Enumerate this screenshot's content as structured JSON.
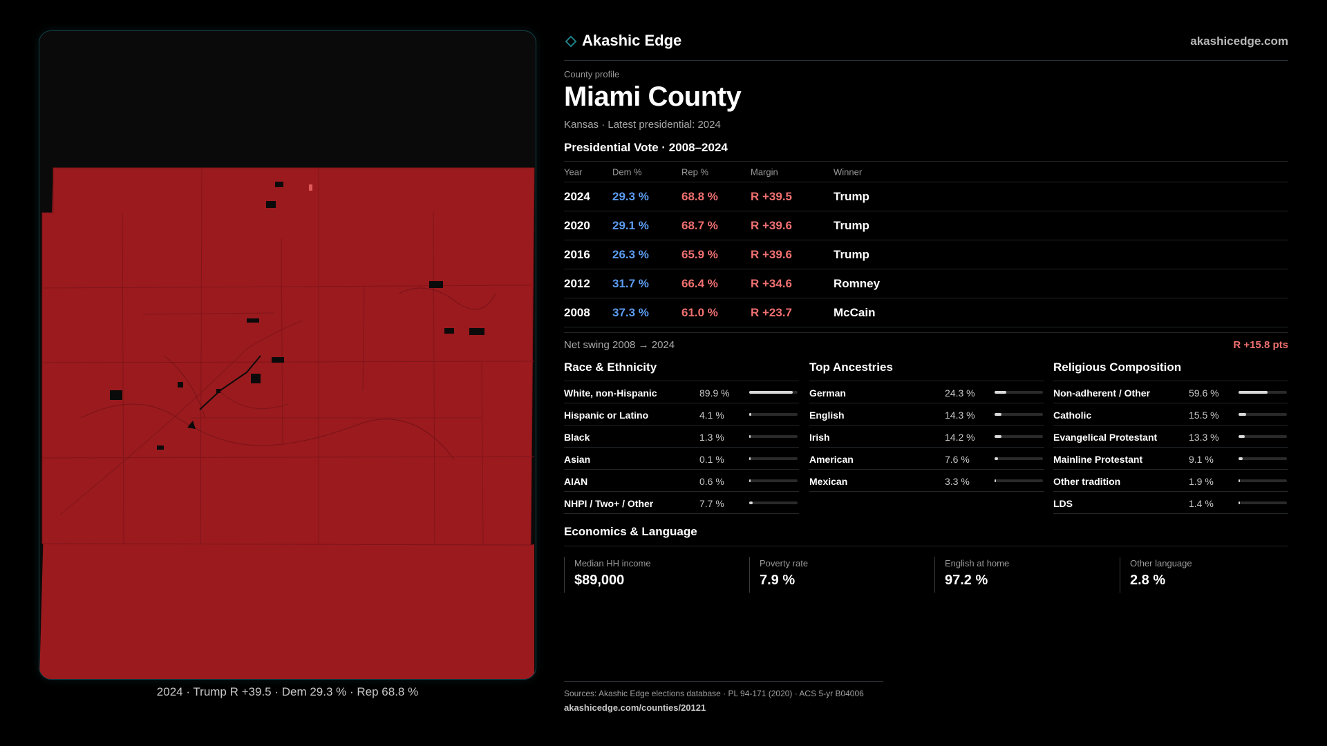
{
  "brand": {
    "name": "Akashic Edge",
    "url": "akashicedge.com",
    "icon": "diamond-icon",
    "accent": "#1f7f86"
  },
  "map": {
    "fill_color": "#9b1a1e",
    "caption": "2024 · Trump R +39.5 · Dem 29.3 % · Rep 68.8 %"
  },
  "header": {
    "eyebrow": "County profile",
    "title": "Miami County",
    "subtitle": "Kansas · Latest presidential: 2024"
  },
  "vote": {
    "title": "Presidential Vote · 2008–2024",
    "columns": {
      "year": "Year",
      "dem": "Dem %",
      "rep": "Rep %",
      "margin": "Margin",
      "winner": "Winner"
    },
    "rows": [
      {
        "year": "2024",
        "dem": "29.3 %",
        "rep": "68.8 %",
        "margin": "R +39.5",
        "winner": "Trump"
      },
      {
        "year": "2020",
        "dem": "29.1 %",
        "rep": "68.7 %",
        "margin": "R +39.6",
        "winner": "Trump"
      },
      {
        "year": "2016",
        "dem": "26.3 %",
        "rep": "65.9 %",
        "margin": "R +39.6",
        "winner": "Trump"
      },
      {
        "year": "2012",
        "dem": "31.7 %",
        "rep": "66.4 %",
        "margin": "R +34.6",
        "winner": "Romney"
      },
      {
        "year": "2008",
        "dem": "37.3 %",
        "rep": "61.0 %",
        "margin": "R +23.7",
        "winner": "McCain"
      }
    ],
    "swing_label": "Net swing 2008 → 2024",
    "swing_value": "R +15.8 pts",
    "dem_color": "#5b9cf0",
    "rep_color": "#f07070"
  },
  "race": {
    "title": "Race & Ethnicity",
    "rows": [
      {
        "label": "White, non-Hispanic",
        "value": "89.9 %",
        "fraction": 0.899
      },
      {
        "label": "Hispanic or Latino",
        "value": "4.1 %",
        "fraction": 0.041
      },
      {
        "label": "Black",
        "value": "1.3 %",
        "fraction": 0.013
      },
      {
        "label": "Asian",
        "value": "0.1 %",
        "fraction": 0.001
      },
      {
        "label": "AIAN",
        "value": "0.6 %",
        "fraction": 0.006
      },
      {
        "label": "NHPI / Two+ / Other",
        "value": "7.7 %",
        "fraction": 0.077
      }
    ]
  },
  "ancestry": {
    "title": "Top Ancestries",
    "rows": [
      {
        "label": "German",
        "value": "24.3 %",
        "fraction": 0.243
      },
      {
        "label": "English",
        "value": "14.3 %",
        "fraction": 0.143
      },
      {
        "label": "Irish",
        "value": "14.2 %",
        "fraction": 0.142
      },
      {
        "label": "American",
        "value": "7.6 %",
        "fraction": 0.076
      },
      {
        "label": "Mexican",
        "value": "3.3 %",
        "fraction": 0.033
      }
    ]
  },
  "religion": {
    "title": "Religious Composition",
    "rows": [
      {
        "label": "Non-adherent / Other",
        "value": "59.6 %",
        "fraction": 0.596
      },
      {
        "label": "Catholic",
        "value": "15.5 %",
        "fraction": 0.155
      },
      {
        "label": "Evangelical Protestant",
        "value": "13.3 %",
        "fraction": 0.133
      },
      {
        "label": "Mainline Protestant",
        "value": "9.1 %",
        "fraction": 0.091
      },
      {
        "label": "Other tradition",
        "value": "1.9 %",
        "fraction": 0.019
      },
      {
        "label": "LDS",
        "value": "1.4 %",
        "fraction": 0.014
      }
    ]
  },
  "economics": {
    "title": "Economics & Language",
    "cards": [
      {
        "label": "Median HH income",
        "value": "$89,000"
      },
      {
        "label": "Poverty rate",
        "value": "7.9 %"
      },
      {
        "label": "English at home",
        "value": "97.2 %"
      },
      {
        "label": "Other language",
        "value": "2.8 %"
      }
    ]
  },
  "sources": {
    "line1": "Sources: Akashic Edge elections database · PL 94-171 (2020) · ACS 5-yr B04006",
    "line2": "akashicedge.com/counties/20121"
  }
}
